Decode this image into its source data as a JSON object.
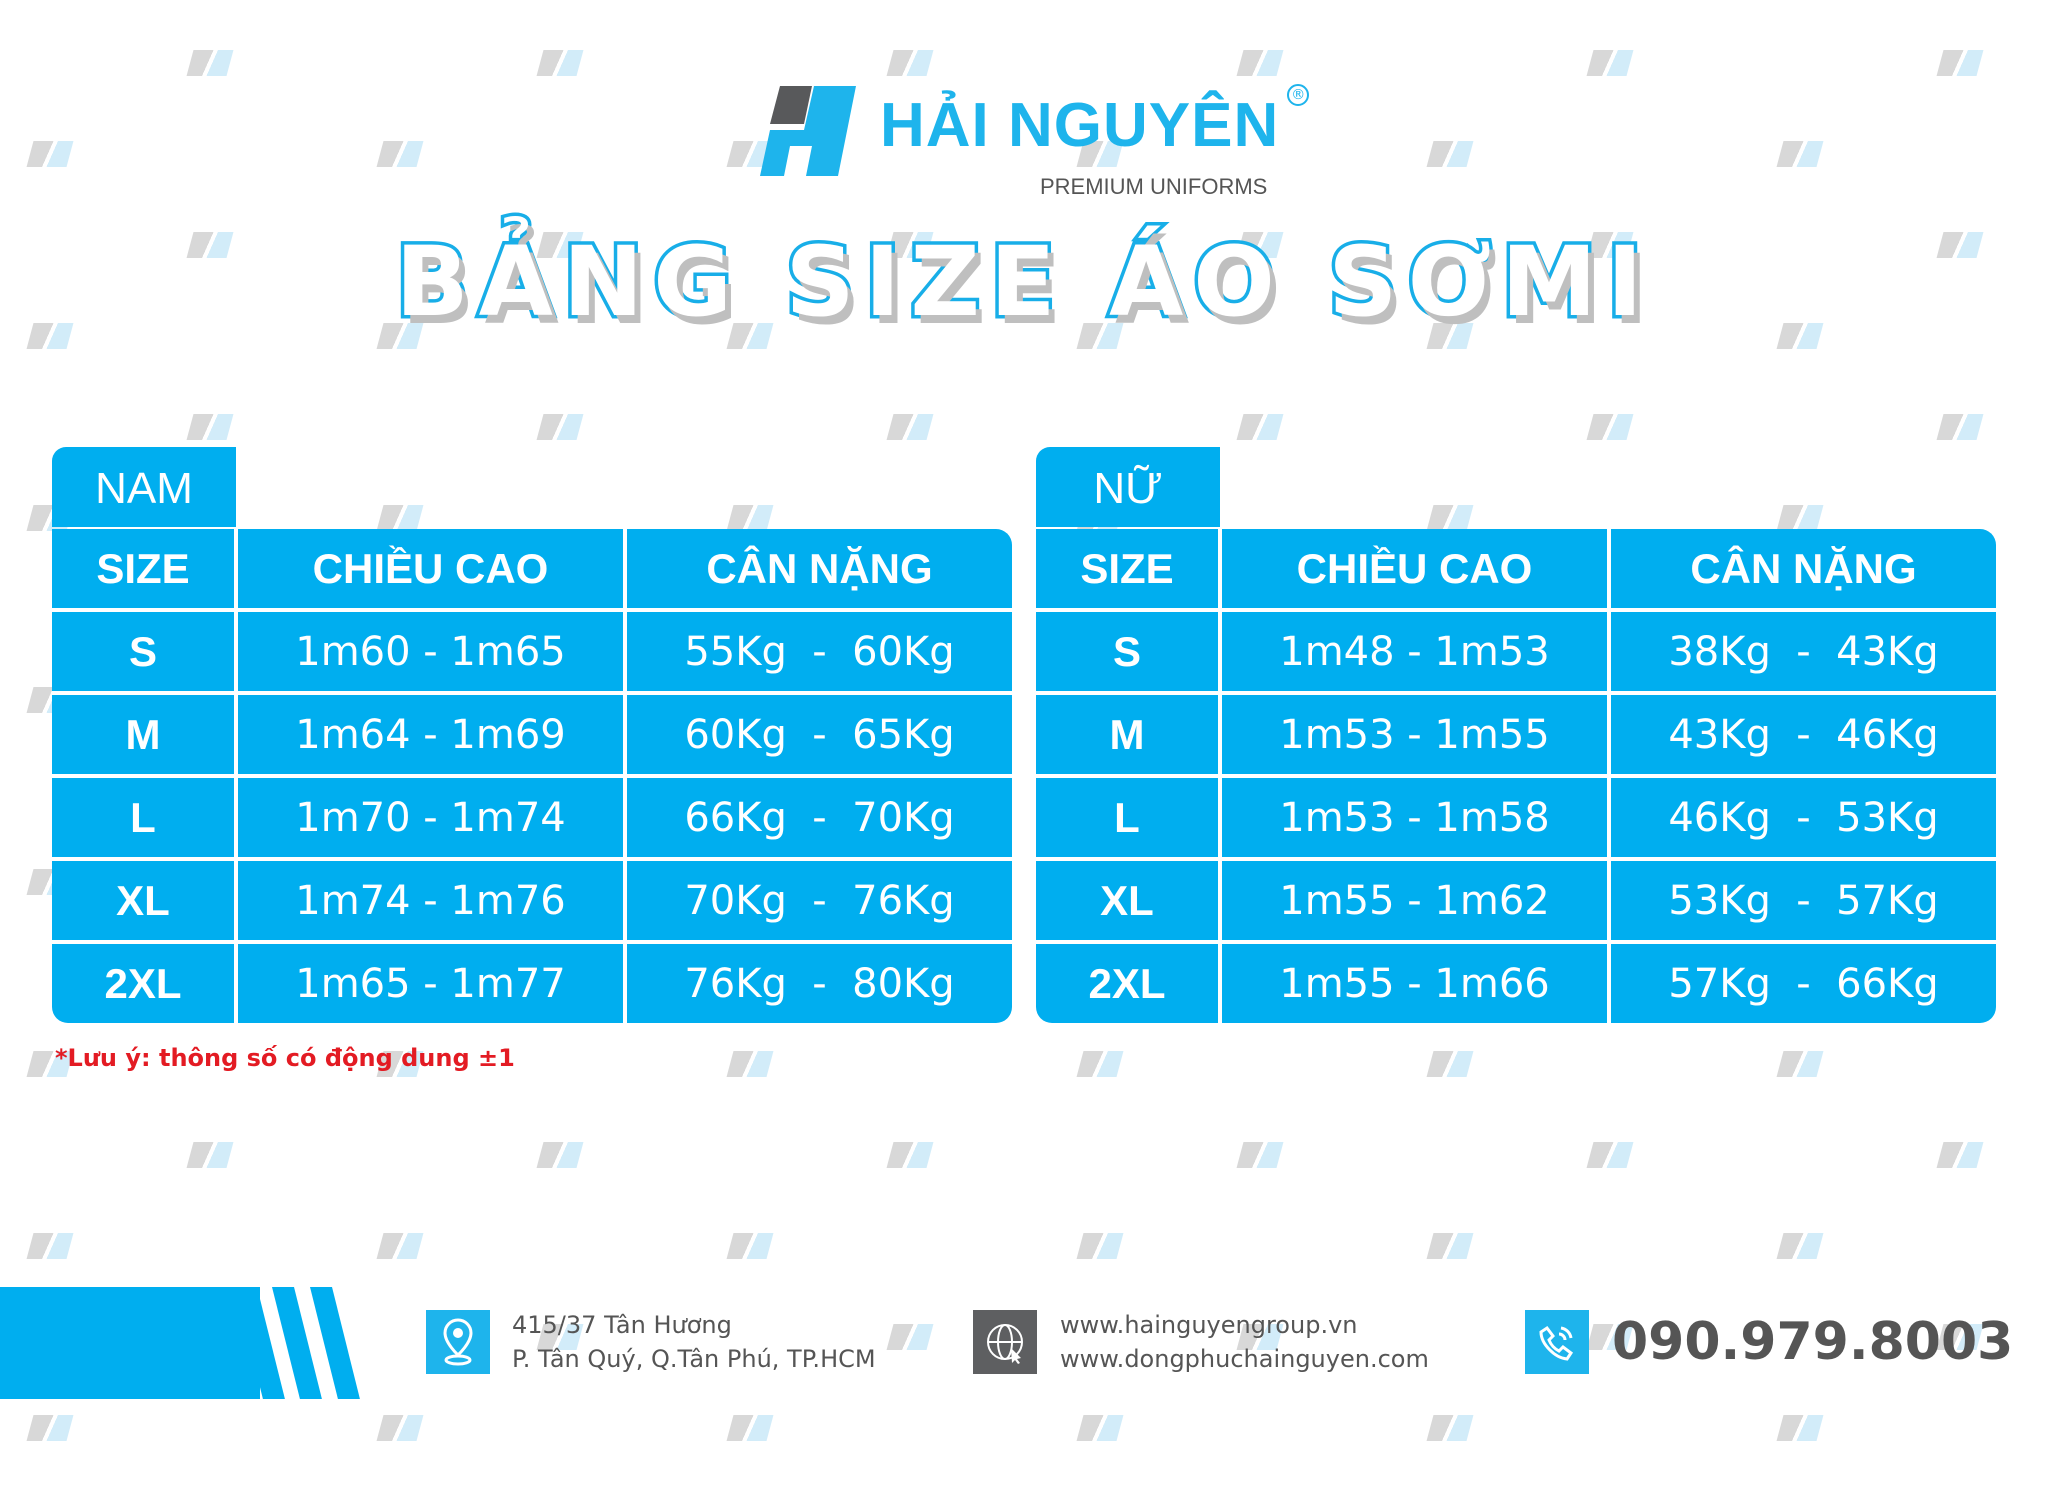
{
  "brand": {
    "name": "HẢI NGUYÊN",
    "tagline": "PREMIUM UNIFORMS",
    "registered": "®"
  },
  "title": "BẢNG SIZE ÁO SƠMI",
  "colors": {
    "primary": "#00aeef",
    "note": "#e31b23",
    "text": "#555555"
  },
  "tables": [
    {
      "label": "NAM",
      "headers": [
        "SIZE",
        "CHIỀU CAO",
        "CÂN NẶNG"
      ],
      "rows": [
        [
          "S",
          "1m60 - 1m65",
          "55Kg  -  60Kg"
        ],
        [
          "M",
          "1m64 - 1m69",
          "60Kg  -  65Kg"
        ],
        [
          "L",
          "1m70 - 1m74",
          "66Kg  -  70Kg"
        ],
        [
          "XL",
          "1m74 - 1m76",
          "70Kg  -  76Kg"
        ],
        [
          "2XL",
          "1m65 - 1m77",
          "76Kg  -  80Kg"
        ]
      ]
    },
    {
      "label": "NỮ",
      "headers": [
        "SIZE",
        "CHIỀU CAO",
        "CÂN NẶNG"
      ],
      "rows": [
        [
          "S",
          "1m48 - 1m53",
          "38Kg  -  43Kg"
        ],
        [
          "M",
          "1m53 - 1m55",
          "43Kg  -  46Kg"
        ],
        [
          "L",
          "1m53 - 1m58",
          "46Kg  -  53Kg"
        ],
        [
          "XL",
          "1m55 - 1m62",
          "53Kg  -  57Kg"
        ],
        [
          "2XL",
          "1m55 - 1m66",
          "57Kg  -  66Kg"
        ]
      ]
    }
  ],
  "note": "*Lưu ý: thông số có động dung ±1",
  "footer": {
    "address": {
      "icon": "location-pin-icon",
      "line1": "415/37 Tân Hương",
      "line2": "P. Tân Quý, Q.Tân Phú, TP.HCM"
    },
    "web": {
      "icon": "globe-www-icon",
      "line1": "www.hainguyengroup.vn",
      "line2": "www.dongphuchainguyen.com"
    },
    "phone": {
      "icon": "phone-icon",
      "number": "090.979.8003"
    }
  }
}
